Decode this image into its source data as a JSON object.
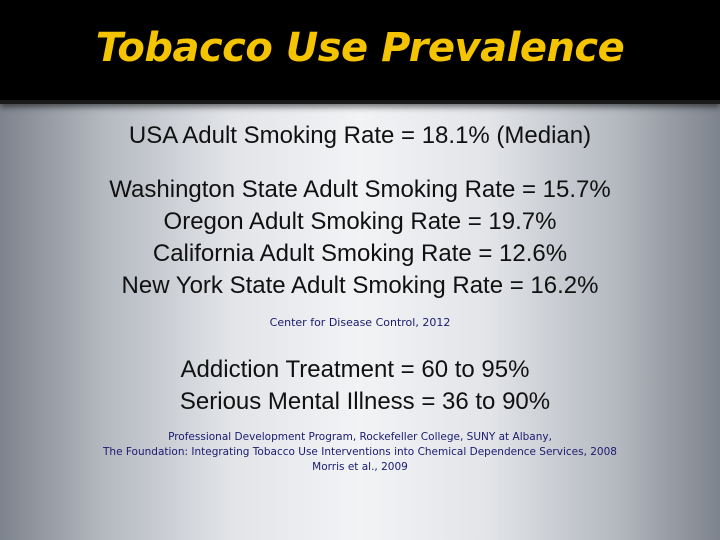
{
  "slide": {
    "title": "Tobacco Use Prevalence",
    "usa_line": "USA  Adult Smoking Rate = 18.1% (Median)",
    "state_lines": [
      "Washington State Adult Smoking Rate = 15.7%",
      "Oregon Adult Smoking Rate = 19.7%",
      "California Adult Smoking Rate = 12.6%",
      "New York State Adult Smoking Rate = 16.2%"
    ],
    "cdc_citation": "Center for Disease Control, 2012",
    "treatment_lines": [
      "Addiction Treatment = 60 to 95%",
      "Serious Mental Illness = 36 to 90%"
    ],
    "references": [
      "Professional Development Program, Rockefeller College, SUNY at Albany,",
      "The Foundation: Integrating Tobacco Use Interventions into Chemical Dependence Services, 2008",
      "Morris et al., 2009"
    ],
    "colors": {
      "title_bar": "#000000",
      "title_text": "#f5c400",
      "body_text": "#111111",
      "citation_text": "#1a1a6e"
    }
  }
}
